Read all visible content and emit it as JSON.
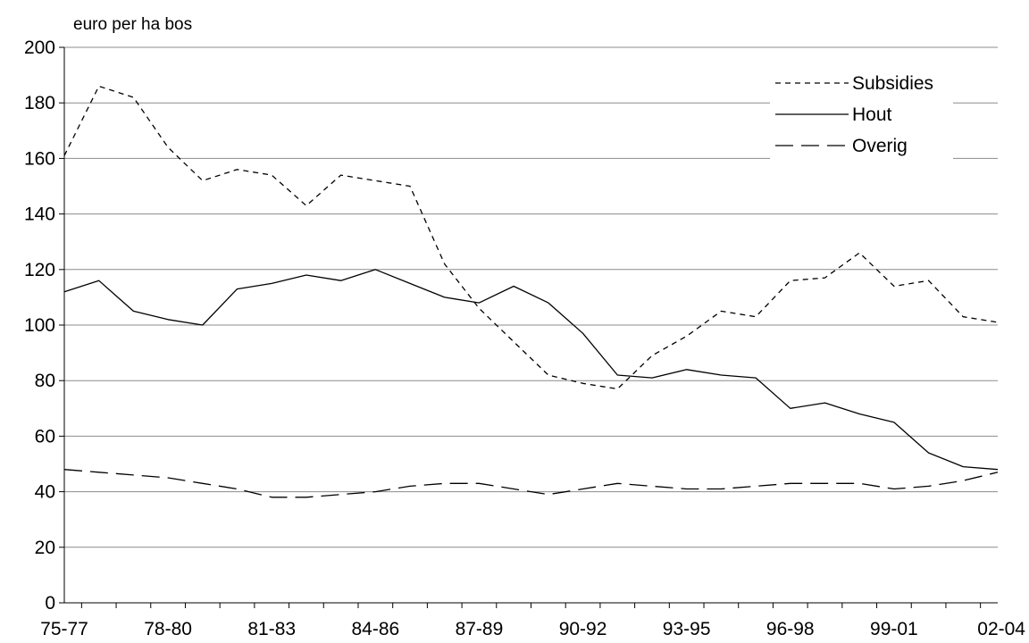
{
  "chart_data": {
    "type": "line",
    "title": "",
    "xlabel": "",
    "ylabel": "euro per ha bos",
    "ylim": [
      0,
      200
    ],
    "yticks": [
      0,
      20,
      40,
      60,
      80,
      100,
      120,
      140,
      160,
      180,
      200
    ],
    "grid": "horizontal",
    "legend_position": "top-right",
    "categories": [
      "75-77",
      "76-78",
      "77-79",
      "78-80",
      "79-81",
      "80-82",
      "81-83",
      "82-84",
      "83-85",
      "84-86",
      "85-87",
      "86-88",
      "87-89",
      "88-90",
      "89-91",
      "90-92",
      "91-93",
      "92-94",
      "93-95",
      "94-96",
      "95-97",
      "96-98",
      "97-99",
      "98-00",
      "99-01",
      "00-02",
      "01-03",
      "02-04"
    ],
    "tick_labels": [
      "75-77",
      "78-80",
      "81-83",
      "84-86",
      "87-89",
      "90-92",
      "93-95",
      "96-98",
      "99-01",
      "02-04"
    ],
    "series": [
      {
        "name": "Subsidies",
        "style": "short-dash",
        "values": [
          161,
          186,
          182,
          164,
          152,
          156,
          154,
          143,
          154,
          152,
          150,
          122,
          106,
          94,
          82,
          79,
          77,
          89,
          96,
          105,
          103,
          116,
          117,
          126,
          114,
          116,
          103,
          101
        ]
      },
      {
        "name": "Hout",
        "style": "solid",
        "values": [
          112,
          116,
          105,
          102,
          100,
          113,
          115,
          118,
          116,
          120,
          115,
          110,
          108,
          114,
          108,
          97,
          82,
          81,
          84,
          82,
          81,
          70,
          72,
          68,
          65,
          54,
          49,
          48
        ]
      },
      {
        "name": "Overig",
        "style": "long-dash",
        "values": [
          48,
          47,
          46,
          45,
          43,
          41,
          38,
          38,
          39,
          40,
          42,
          43,
          43,
          41,
          39,
          41,
          43,
          42,
          41,
          41,
          42,
          43,
          43,
          43,
          41,
          42,
          44,
          47
        ]
      }
    ]
  }
}
